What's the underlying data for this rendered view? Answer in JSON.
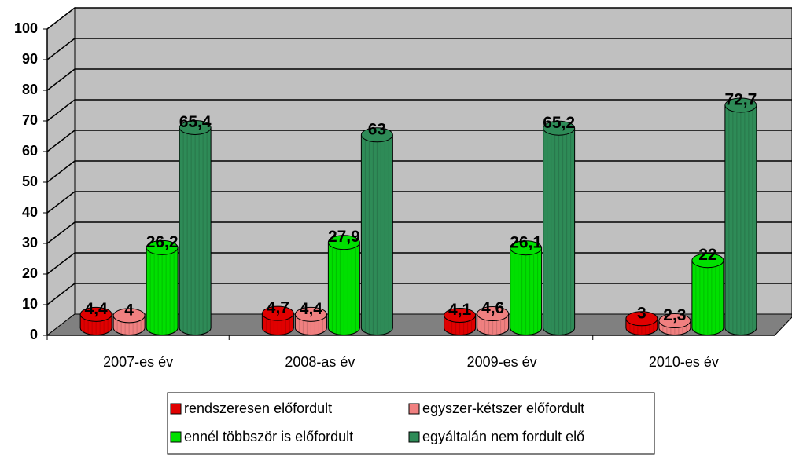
{
  "chart_data": {
    "type": "bar3d",
    "categories": [
      "2007-es év",
      "2008-as év",
      "2009-es év",
      "2010-es év"
    ],
    "series": [
      {
        "name": "rendszeresen előfordult",
        "color": "#e00000",
        "values": [
          4.4,
          4.7,
          4.1,
          3
        ],
        "value_labels": [
          "4,4",
          "4,7",
          "4,1",
          "3"
        ]
      },
      {
        "name": "egyszer-kétszer előfordult",
        "color": "#f08080",
        "values": [
          4,
          4.4,
          4.6,
          2.3
        ],
        "value_labels": [
          "4",
          "4,4",
          "4,6",
          "2,3"
        ]
      },
      {
        "name": "ennél többször is előfordult",
        "color": "#00e000",
        "values": [
          26.2,
          27.9,
          26.1,
          22
        ],
        "value_labels": [
          "26,2",
          "27,9",
          "26,1",
          "22"
        ]
      },
      {
        "name": "egyáltalán nem fordult elő",
        "color": "#2e8b57",
        "values": [
          65.4,
          63,
          65.2,
          72.7
        ],
        "value_labels": [
          "65,4",
          "63",
          "65,2",
          "72,7"
        ]
      }
    ],
    "ylim": [
      0,
      100
    ],
    "yticks": [
      0,
      10,
      20,
      30,
      40,
      50,
      60,
      70,
      80,
      90,
      100
    ],
    "grid": true,
    "legend": "bottom"
  }
}
